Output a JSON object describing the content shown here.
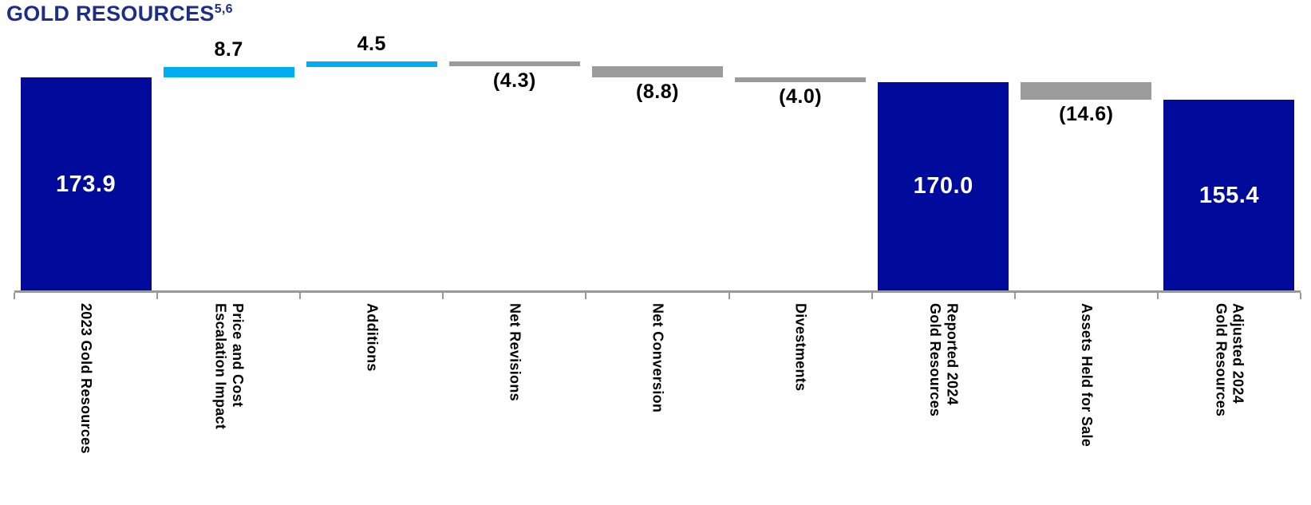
{
  "title": {
    "text": "GOLD RESOURCES",
    "superscript": "5,6"
  },
  "colors": {
    "total_bar": "#000A9B",
    "increase_bar": "#00AEEF",
    "decrease_bar": "#9B9B9B",
    "axis": "#999999",
    "title_text": "#1C2E8A",
    "outside_value_label": "#000000",
    "inside_value_label": "#FFFFFF"
  },
  "chart_data": {
    "type": "bar",
    "subtype": "waterfall",
    "title": "GOLD RESOURCES 5,6",
    "xlabel": "",
    "ylabel": "",
    "value_axis_range": [
      0,
      190
    ],
    "grid": false,
    "legend": false,
    "categories": [
      {
        "label": "2023 Gold Resources",
        "value": 173.9,
        "display": "173.9",
        "kind": "total"
      },
      {
        "label": "Price and Cost\nEscalation Impact",
        "value": 8.7,
        "display": "8.7",
        "kind": "increase"
      },
      {
        "label": "Additions",
        "value": 4.5,
        "display": "4.5",
        "kind": "increase"
      },
      {
        "label": "Net Revisions",
        "value": -4.3,
        "display": "(4.3)",
        "kind": "decrease"
      },
      {
        "label": "Net Conversion",
        "value": -8.8,
        "display": "(8.8)",
        "kind": "decrease"
      },
      {
        "label": "Divestments",
        "value": -4.0,
        "display": "(4.0)",
        "kind": "decrease"
      },
      {
        "label": "Reported 2024\nGold Resources",
        "value": 170.0,
        "display": "170.0",
        "kind": "total"
      },
      {
        "label": "Assets Held for Sale",
        "value": -14.6,
        "display": "(14.6)",
        "kind": "decrease"
      },
      {
        "label": "Adjusted 2024\nGold Resources",
        "value": 155.4,
        "display": "155.4",
        "kind": "total"
      }
    ]
  }
}
